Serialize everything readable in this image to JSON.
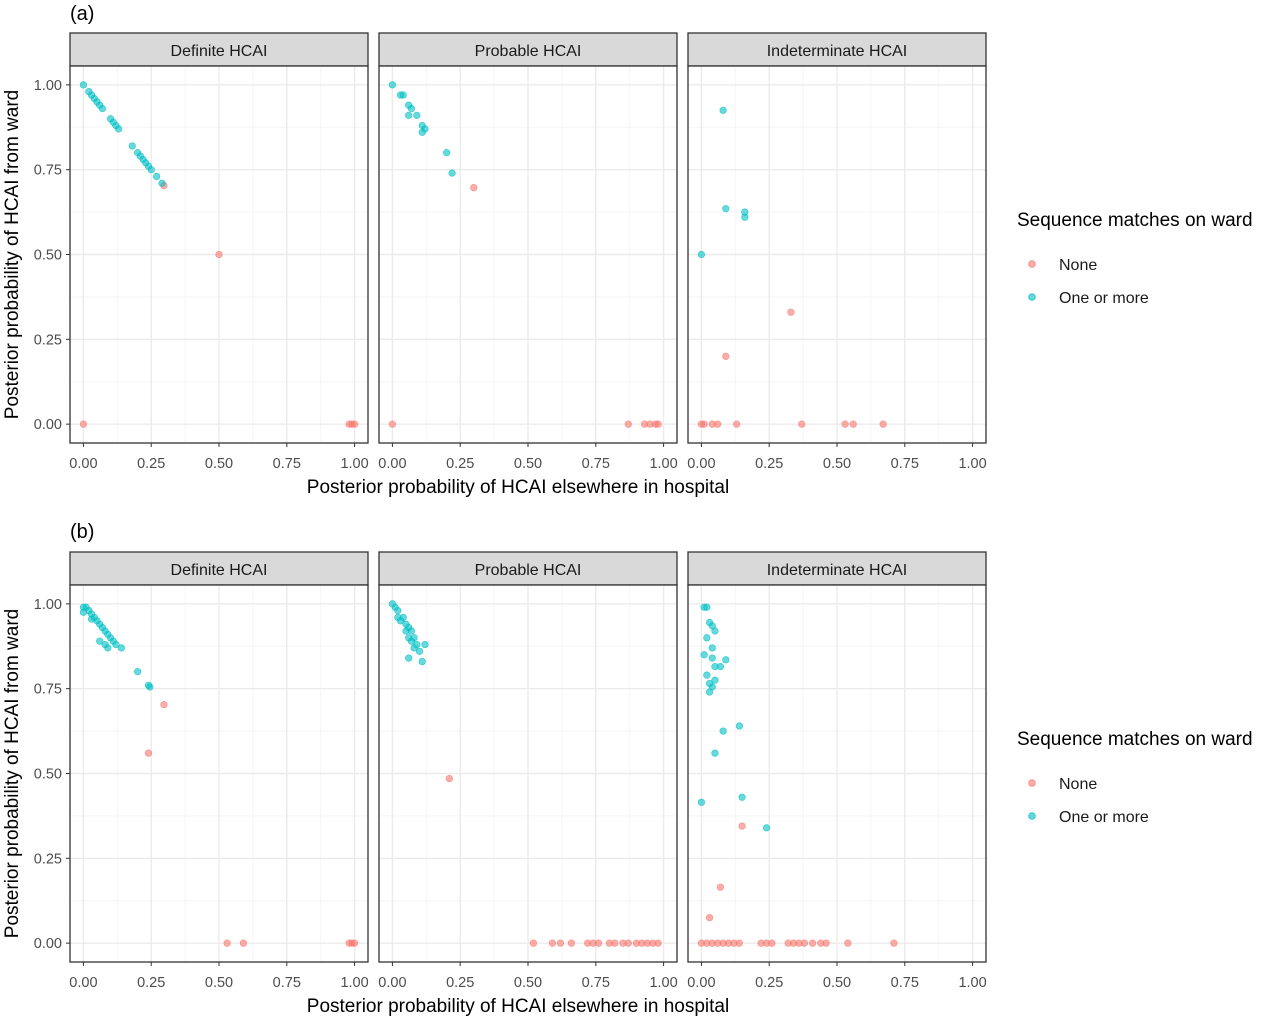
{
  "colors": {
    "none": "#F8766D",
    "one_or_more": "#00BFC4",
    "strip_fill": "#D9D9D9",
    "panel_border": "#333333",
    "grid_major": "#EBEBEB",
    "grid_minor": "#F5F5F5",
    "tick_text": "#4D4D4D"
  },
  "chart_data": [
    {
      "type": "scatter",
      "panel_label": "(a)",
      "xlabel": "Posterior probability of HCAI elsewhere in hospital",
      "ylabel": "Posterior probability of HCAI from ward",
      "xlim": [
        0,
        1
      ],
      "ylim": [
        0,
        1
      ],
      "x_ticks": [
        "0.00",
        "0.25",
        "0.50",
        "0.75",
        "1.00"
      ],
      "y_ticks": [
        "0.00",
        "0.25",
        "0.50",
        "0.75",
        "1.00"
      ],
      "grid": true,
      "legend": {
        "title": "Sequence matches on ward",
        "position": "right",
        "entries": [
          "None",
          "One or more"
        ]
      },
      "facets": [
        {
          "name": "Definite HCAI",
          "series": [
            {
              "name": "None",
              "points": [
                [
                  0.0,
                  0.0
                ],
                [
                  0.297,
                  0.703
                ],
                [
                  0.5,
                  0.5
                ],
                [
                  0.98,
                  0.0
                ],
                [
                  0.99,
                  0.0
                ],
                [
                  1.0,
                  0.0
                ]
              ]
            },
            {
              "name": "One or more",
              "points": [
                [
                  0.0,
                  1.0
                ],
                [
                  0.02,
                  0.98
                ],
                [
                  0.03,
                  0.97
                ],
                [
                  0.04,
                  0.96
                ],
                [
                  0.05,
                  0.95
                ],
                [
                  0.06,
                  0.94
                ],
                [
                  0.07,
                  0.93
                ],
                [
                  0.1,
                  0.9
                ],
                [
                  0.11,
                  0.89
                ],
                [
                  0.12,
                  0.88
                ],
                [
                  0.13,
                  0.87
                ],
                [
                  0.18,
                  0.82
                ],
                [
                  0.2,
                  0.8
                ],
                [
                  0.21,
                  0.79
                ],
                [
                  0.22,
                  0.78
                ],
                [
                  0.23,
                  0.77
                ],
                [
                  0.24,
                  0.76
                ],
                [
                  0.25,
                  0.75
                ],
                [
                  0.27,
                  0.73
                ],
                [
                  0.29,
                  0.71
                ]
              ]
            }
          ]
        },
        {
          "name": "Probable HCAI",
          "series": [
            {
              "name": "None",
              "points": [
                [
                  0.0,
                  0.0
                ],
                [
                  0.3,
                  0.697
                ],
                [
                  0.87,
                  0.0
                ],
                [
                  0.93,
                  0.0
                ],
                [
                  0.95,
                  0.0
                ],
                [
                  0.97,
                  0.0
                ],
                [
                  0.98,
                  0.0
                ]
              ]
            },
            {
              "name": "One or more",
              "points": [
                [
                  0.0,
                  1.0
                ],
                [
                  0.03,
                  0.97
                ],
                [
                  0.04,
                  0.97
                ],
                [
                  0.06,
                  0.94
                ],
                [
                  0.07,
                  0.93
                ],
                [
                  0.06,
                  0.91
                ],
                [
                  0.09,
                  0.91
                ],
                [
                  0.11,
                  0.88
                ],
                [
                  0.12,
                  0.87
                ],
                [
                  0.11,
                  0.86
                ],
                [
                  0.2,
                  0.8
                ],
                [
                  0.22,
                  0.74
                ]
              ]
            }
          ]
        },
        {
          "name": "Indeterminate HCAI",
          "series": [
            {
              "name": "None",
              "points": [
                [
                  0.0,
                  0.0
                ],
                [
                  0.01,
                  0.0
                ],
                [
                  0.04,
                  0.0
                ],
                [
                  0.06,
                  0.0
                ],
                [
                  0.13,
                  0.0
                ],
                [
                  0.33,
                  0.33
                ],
                [
                  0.09,
                  0.2
                ],
                [
                  0.37,
                  0.0
                ],
                [
                  0.53,
                  0.0
                ],
                [
                  0.56,
                  0.0
                ],
                [
                  0.67,
                  0.0
                ]
              ]
            },
            {
              "name": "One or more",
              "points": [
                [
                  0.08,
                  0.925
                ],
                [
                  0.09,
                  0.635
                ],
                [
                  0.16,
                  0.625
                ],
                [
                  0.16,
                  0.61
                ],
                [
                  0.0,
                  0.5
                ]
              ]
            }
          ]
        }
      ]
    },
    {
      "type": "scatter",
      "panel_label": "(b)",
      "xlabel": "Posterior probability of HCAI elsewhere in hospital",
      "ylabel": "Posterior probability of HCAI from ward",
      "xlim": [
        0,
        1
      ],
      "ylim": [
        0,
        1
      ],
      "x_ticks": [
        "0.00",
        "0.25",
        "0.50",
        "0.75",
        "1.00"
      ],
      "y_ticks": [
        "0.00",
        "0.25",
        "0.50",
        "0.75",
        "1.00"
      ],
      "grid": true,
      "legend": {
        "title": "Sequence matches on ward",
        "position": "right",
        "entries": [
          "None",
          "One or more"
        ]
      },
      "facets": [
        {
          "name": "Definite HCAI",
          "series": [
            {
              "name": "None",
              "points": [
                [
                  0.297,
                  0.703
                ],
                [
                  0.24,
                  0.56
                ],
                [
                  0.53,
                  0.0
                ],
                [
                  0.59,
                  0.0
                ],
                [
                  0.98,
                  0.0
                ],
                [
                  0.99,
                  0.0
                ],
                [
                  1.0,
                  0.0
                ]
              ]
            },
            {
              "name": "One or more",
              "points": [
                [
                  0.0,
                  0.99
                ],
                [
                  0.01,
                  0.99
                ],
                [
                  0.0,
                  0.975
                ],
                [
                  0.02,
                  0.98
                ],
                [
                  0.03,
                  0.97
                ],
                [
                  0.04,
                  0.96
                ],
                [
                  0.05,
                  0.95
                ],
                [
                  0.03,
                  0.955
                ],
                [
                  0.06,
                  0.94
                ],
                [
                  0.07,
                  0.93
                ],
                [
                  0.08,
                  0.92
                ],
                [
                  0.09,
                  0.91
                ],
                [
                  0.1,
                  0.9
                ],
                [
                  0.11,
                  0.89
                ],
                [
                  0.06,
                  0.89
                ],
                [
                  0.08,
                  0.88
                ],
                [
                  0.12,
                  0.88
                ],
                [
                  0.09,
                  0.87
                ],
                [
                  0.14,
                  0.87
                ],
                [
                  0.2,
                  0.8
                ],
                [
                  0.24,
                  0.76
                ],
                [
                  0.245,
                  0.755
                ]
              ]
            }
          ]
        },
        {
          "name": "Probable HCAI",
          "series": [
            {
              "name": "None",
              "points": [
                [
                  0.21,
                  0.485
                ],
                [
                  0.52,
                  0.0
                ],
                [
                  0.59,
                  0.0
                ],
                [
                  0.62,
                  0.0
                ],
                [
                  0.66,
                  0.0
                ],
                [
                  0.72,
                  0.0
                ],
                [
                  0.74,
                  0.0
                ],
                [
                  0.76,
                  0.0
                ],
                [
                  0.8,
                  0.0
                ],
                [
                  0.82,
                  0.0
                ],
                [
                  0.85,
                  0.0
                ],
                [
                  0.87,
                  0.0
                ],
                [
                  0.9,
                  0.0
                ],
                [
                  0.92,
                  0.0
                ],
                [
                  0.94,
                  0.0
                ],
                [
                  0.96,
                  0.0
                ],
                [
                  0.98,
                  0.0
                ]
              ]
            },
            {
              "name": "One or more",
              "points": [
                [
                  0.0,
                  1.0
                ],
                [
                  0.01,
                  0.99
                ],
                [
                  0.02,
                  0.98
                ],
                [
                  0.02,
                  0.96
                ],
                [
                  0.03,
                  0.95
                ],
                [
                  0.04,
                  0.96
                ],
                [
                  0.05,
                  0.94
                ],
                [
                  0.06,
                  0.93
                ],
                [
                  0.05,
                  0.92
                ],
                [
                  0.07,
                  0.92
                ],
                [
                  0.06,
                  0.9
                ],
                [
                  0.08,
                  0.9
                ],
                [
                  0.07,
                  0.89
                ],
                [
                  0.09,
                  0.88
                ],
                [
                  0.08,
                  0.87
                ],
                [
                  0.1,
                  0.86
                ],
                [
                  0.12,
                  0.88
                ],
                [
                  0.06,
                  0.84
                ],
                [
                  0.11,
                  0.83
                ]
              ]
            }
          ]
        },
        {
          "name": "Indeterminate HCAI",
          "series": [
            {
              "name": "None",
              "points": [
                [
                  0.15,
                  0.345
                ],
                [
                  0.07,
                  0.165
                ],
                [
                  0.03,
                  0.075
                ],
                [
                  0.0,
                  0.0
                ],
                [
                  0.02,
                  0.0
                ],
                [
                  0.04,
                  0.0
                ],
                [
                  0.06,
                  0.0
                ],
                [
                  0.08,
                  0.0
                ],
                [
                  0.1,
                  0.0
                ],
                [
                  0.12,
                  0.0
                ],
                [
                  0.14,
                  0.0
                ],
                [
                  0.22,
                  0.0
                ],
                [
                  0.24,
                  0.0
                ],
                [
                  0.26,
                  0.0
                ],
                [
                  0.32,
                  0.0
                ],
                [
                  0.34,
                  0.0
                ],
                [
                  0.36,
                  0.0
                ],
                [
                  0.38,
                  0.0
                ],
                [
                  0.41,
                  0.0
                ],
                [
                  0.44,
                  0.0
                ],
                [
                  0.46,
                  0.0
                ],
                [
                  0.54,
                  0.0
                ],
                [
                  0.71,
                  0.0
                ]
              ]
            },
            {
              "name": "One or more",
              "points": [
                [
                  0.01,
                  0.99
                ],
                [
                  0.02,
                  0.99
                ],
                [
                  0.03,
                  0.945
                ],
                [
                  0.04,
                  0.935
                ],
                [
                  0.05,
                  0.92
                ],
                [
                  0.02,
                  0.9
                ],
                [
                  0.04,
                  0.87
                ],
                [
                  0.01,
                  0.85
                ],
                [
                  0.04,
                  0.84
                ],
                [
                  0.09,
                  0.835
                ],
                [
                  0.05,
                  0.815
                ],
                [
                  0.07,
                  0.815
                ],
                [
                  0.02,
                  0.79
                ],
                [
                  0.03,
                  0.765
                ],
                [
                  0.05,
                  0.775
                ],
                [
                  0.04,
                  0.755
                ],
                [
                  0.03,
                  0.74
                ],
                [
                  0.14,
                  0.64
                ],
                [
                  0.08,
                  0.625
                ],
                [
                  0.05,
                  0.56
                ],
                [
                  0.15,
                  0.43
                ],
                [
                  0.0,
                  0.415
                ],
                [
                  0.24,
                  0.34
                ]
              ]
            }
          ]
        }
      ]
    }
  ]
}
